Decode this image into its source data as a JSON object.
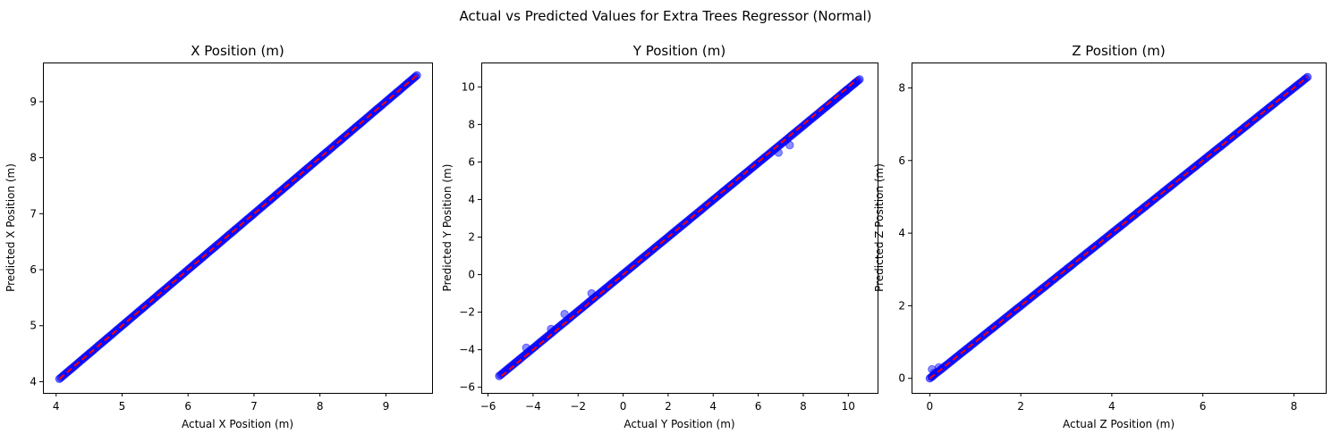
{
  "figure": {
    "title": "Actual vs Predicted Values for Extra Trees Regressor (Normal)"
  },
  "colors": {
    "points": "#0000ff",
    "reference_line": "#ff0000",
    "axes": "#000000",
    "background": "#ffffff"
  },
  "chart_data": [
    {
      "type": "scatter",
      "title": "X Position (m)",
      "xlabel": "Actual X Position (m)",
      "ylabel": "Predicted X Position (m)",
      "xlim": [
        3.8,
        9.7
      ],
      "ylim": [
        3.8,
        9.7
      ],
      "xticks": [
        4,
        5,
        6,
        7,
        8,
        9
      ],
      "yticks": [
        4,
        5,
        6,
        7,
        8,
        9
      ],
      "grid": false,
      "reference_line": {
        "style": "dashed",
        "color": "red",
        "from": [
          4.05,
          4.05
        ],
        "to": [
          9.47,
          9.47
        ]
      },
      "series": [
        {
          "marker": "circle",
          "color": "blue",
          "alpha": 0.5,
          "x_range": [
            4.05,
            9.47
          ],
          "y_range": [
            4.05,
            9.47
          ],
          "relation": "y ≈ x"
        }
      ]
    },
    {
      "type": "scatter",
      "title": "Y Position (m)",
      "xlabel": "Actual Y Position (m)",
      "ylabel": "Predicted Y Position (m)",
      "xlim": [
        -6.3,
        11.3
      ],
      "ylim": [
        -6.3,
        11.3
      ],
      "xticks": [
        -6,
        -4,
        -2,
        0,
        2,
        4,
        6,
        8,
        10
      ],
      "yticks": [
        -6,
        -4,
        -2,
        0,
        2,
        4,
        6,
        8,
        10
      ],
      "grid": false,
      "reference_line": {
        "style": "dashed",
        "color": "red",
        "from": [
          -5.4,
          -5.4
        ],
        "to": [
          10.4,
          10.4
        ]
      },
      "series": [
        {
          "marker": "circle",
          "color": "blue",
          "alpha": 0.5,
          "x_range": [
            -5.5,
            10.5
          ],
          "y_range": [
            -5.4,
            10.4
          ],
          "relation": "y ≈ x"
        }
      ],
      "outliers": [
        {
          "x": -4.3,
          "y": -3.9
        },
        {
          "x": -3.2,
          "y": -2.9
        },
        {
          "x": -2.6,
          "y": -2.1
        },
        {
          "x": -1.4,
          "y": -1.0
        },
        {
          "x": 7.4,
          "y": 6.9
        },
        {
          "x": 6.9,
          "y": 6.5
        },
        {
          "x": 9.9,
          "y": 9.8
        },
        {
          "x": 10.3,
          "y": 10.2
        }
      ]
    },
    {
      "type": "scatter",
      "title": "Z Position (m)",
      "xlabel": "Actual Z Position (m)",
      "ylabel": "Predicted Z Position (m)",
      "xlim": [
        -0.4,
        8.7
      ],
      "ylim": [
        -0.4,
        8.7
      ],
      "xticks": [
        0,
        2,
        4,
        6,
        8
      ],
      "yticks": [
        0,
        2,
        4,
        6,
        8
      ],
      "grid": false,
      "reference_line": {
        "style": "dashed",
        "color": "red",
        "from": [
          0.0,
          0.0
        ],
        "to": [
          8.3,
          8.3
        ]
      },
      "series": [
        {
          "marker": "circle",
          "color": "blue",
          "alpha": 0.5,
          "x_range": [
            0.0,
            8.3
          ],
          "y_range": [
            0.0,
            8.3
          ],
          "relation": "y ≈ x"
        }
      ],
      "outliers": [
        {
          "x": 0.05,
          "y": 0.25
        },
        {
          "x": 0.1,
          "y": 0.15
        },
        {
          "x": 0.2,
          "y": 0.3
        },
        {
          "x": 0.05,
          "y": 0.05
        }
      ]
    }
  ]
}
